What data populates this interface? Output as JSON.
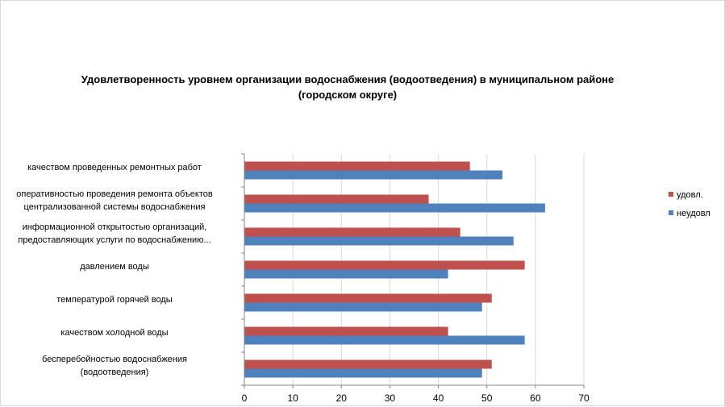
{
  "chart_data": {
    "type": "bar",
    "orientation": "horizontal",
    "title_line1": "Удовлетворенность уровнем организации водоснабжения (водоотведения) в муниципальном районе",
    "title_line2": "(городском округе)",
    "categories": [
      [
        "качеством  проведенных  ремонтных работ"
      ],
      [
        "оперативностью  проведения  ремонта объектов",
        "централизованной системы водоснабжения"
      ],
      [
        "информационной открытостью организаций,",
        "предоставляющих услуги по водоснабжению..."
      ],
      [
        "давлением  воды"
      ],
      [
        "температурой горячей воды"
      ],
      [
        "качеством  холодной воды"
      ],
      [
        "бесперебойностью  водоснабжения",
        "(водоотведения)"
      ]
    ],
    "series": [
      {
        "name": "удовл.",
        "color": "#c0504d",
        "values": [
          46.5,
          38,
          44.5,
          57.8,
          51,
          42,
          51
        ]
      },
      {
        "name": "неудовл",
        "color": "#4f81bd",
        "values": [
          53.2,
          62,
          55.5,
          42,
          49,
          57.8,
          49
        ]
      }
    ],
    "xlim": [
      0,
      70
    ],
    "xticks": [
      "0",
      "10",
      "20",
      "30",
      "40",
      "50",
      "60",
      "70"
    ],
    "legend_position": "right",
    "grid": true
  }
}
